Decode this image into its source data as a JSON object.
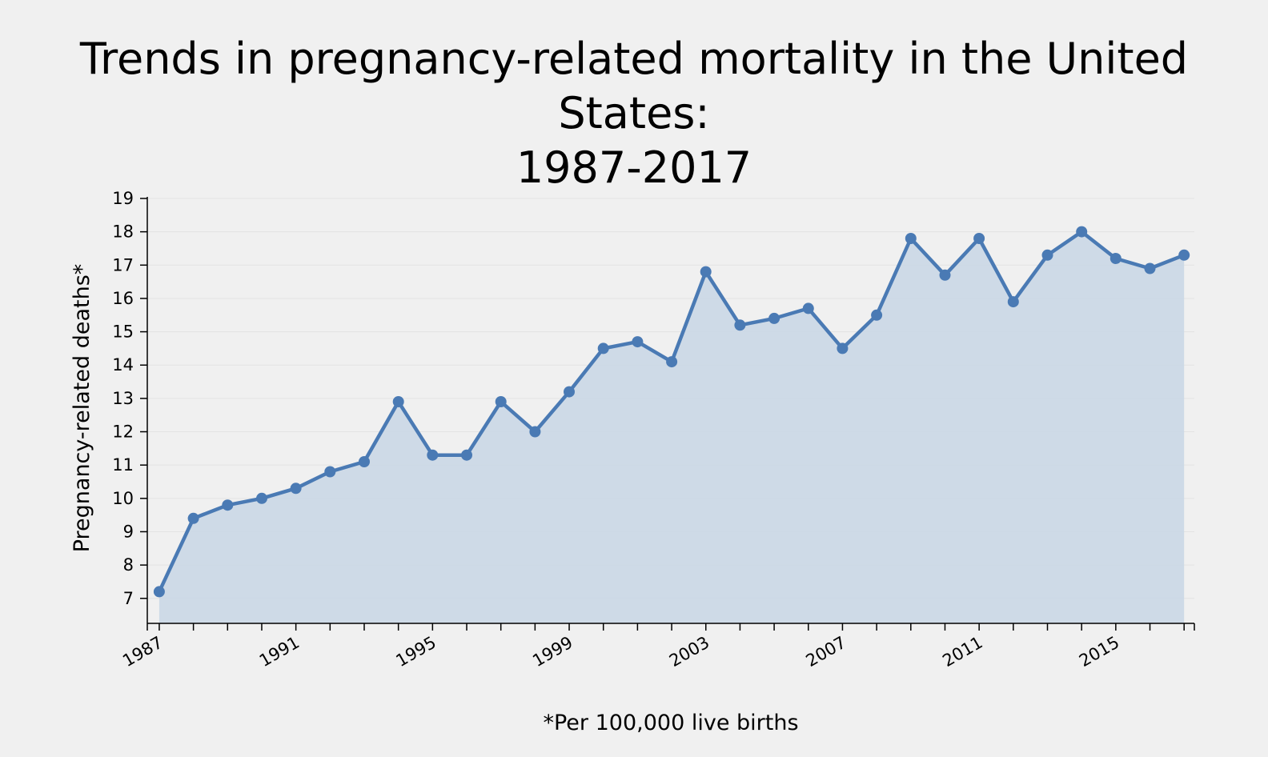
{
  "colors": {
    "background": "#f0f0f0",
    "line": "#4a7ab4",
    "area": "#c8d6e5",
    "grid": "#e3e3e3"
  },
  "chart_data": {
    "type": "area",
    "title": "Trends in pregnancy-related mortality in the United States: 1987-2017",
    "title_lines": [
      "Trends in pregnancy-related mortality in the United States:",
      "1987-2017"
    ],
    "ylabel": "Pregnancy-related deaths*",
    "xlabel": "*Per 100,000 live births",
    "ylim": [
      6.25,
      19
    ],
    "yticks": [
      7,
      8,
      9,
      10,
      11,
      12,
      13,
      14,
      15,
      16,
      17,
      18,
      19
    ],
    "xlim": [
      1986.65,
      2017.3
    ],
    "xticks": [
      1987,
      1988,
      1989,
      1990,
      1991,
      1992,
      1993,
      1994,
      1995,
      1996,
      1997,
      1998,
      1999,
      2000,
      2001,
      2002,
      2003,
      2004,
      2005,
      2006,
      2007,
      2008,
      2009,
      2010,
      2011,
      2012,
      2013,
      2014,
      2015,
      2016,
      2017
    ],
    "xtick_labels": [
      "1987",
      "1991",
      "1995",
      "1999",
      "2003",
      "2007",
      "2011",
      "2015"
    ],
    "grid": true,
    "series": [
      {
        "x": [
          1987,
          1988,
          1989,
          1990,
          1991,
          1992,
          1993,
          1994,
          1995,
          1996,
          1997,
          1998,
          1999,
          2000,
          2001,
          2002,
          2003,
          2004,
          2005,
          2006,
          2007,
          2008,
          2009,
          2010,
          2011,
          2012,
          2013,
          2014,
          2015,
          2016,
          2017
        ],
        "values": [
          7.2,
          9.4,
          9.8,
          10.0,
          10.3,
          10.8,
          11.1,
          12.9,
          11.3,
          11.3,
          12.9,
          12.0,
          13.2,
          14.5,
          14.7,
          14.1,
          16.8,
          15.2,
          15.4,
          15.7,
          14.5,
          15.5,
          17.8,
          16.7,
          17.8,
          15.9,
          17.3,
          18.0,
          17.2,
          16.9,
          17.3
        ]
      }
    ]
  }
}
